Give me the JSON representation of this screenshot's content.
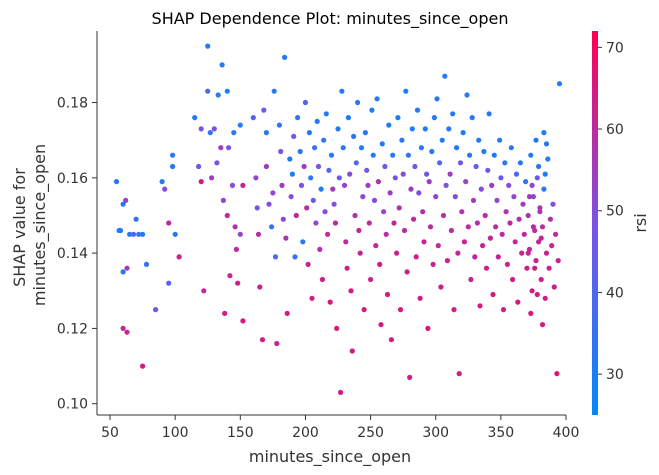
{
  "chart_data": {
    "type": "scatter",
    "title": "SHAP Dependence Plot: minutes_since_open",
    "xlabel": "minutes_since_open",
    "ylabel_line1": "SHAP value for",
    "ylabel_line2": "minutes_since_open",
    "xlim": [
      40,
      400
    ],
    "ylim": [
      0.097,
      0.199
    ],
    "xticks": [
      "50",
      "100",
      "150",
      "200",
      "250",
      "300",
      "350",
      "400"
    ],
    "yticks": [
      "0.10",
      "0.12",
      "0.14",
      "0.16",
      "0.18"
    ],
    "colorbar": {
      "label": "rsi",
      "range": [
        25,
        72
      ],
      "ticks": [
        "30",
        "40",
        "50",
        "60",
        "70"
      ],
      "low_color": "#008afb",
      "mid_color": "#7c52e6",
      "high_color": "#ff0052"
    },
    "points": [
      [
        55,
        0.159,
        32
      ],
      [
        57,
        0.146,
        30
      ],
      [
        58,
        0.146,
        31
      ],
      [
        60,
        0.153,
        33
      ],
      [
        62,
        0.154,
        52
      ],
      [
        60,
        0.135,
        34
      ],
      [
        63,
        0.136,
        55
      ],
      [
        65,
        0.145,
        33
      ],
      [
        68,
        0.145,
        40
      ],
      [
        70,
        0.149,
        34
      ],
      [
        72,
        0.145,
        36
      ],
      [
        75,
        0.145,
        31
      ],
      [
        60,
        0.12,
        60
      ],
      [
        63,
        0.119,
        62
      ],
      [
        75,
        0.11,
        64
      ],
      [
        78,
        0.137,
        35
      ],
      [
        85,
        0.125,
        45
      ],
      [
        90,
        0.159,
        32
      ],
      [
        92,
        0.157,
        50
      ],
      [
        95,
        0.148,
        60
      ],
      [
        95,
        0.132,
        42
      ],
      [
        98,
        0.163,
        30
      ],
      [
        98,
        0.166,
        31
      ],
      [
        100,
        0.145,
        33
      ],
      [
        103,
        0.139,
        63
      ],
      [
        115,
        0.176,
        31
      ],
      [
        118,
        0.163,
        45
      ],
      [
        120,
        0.173,
        48
      ],
      [
        120,
        0.159,
        65
      ],
      [
        122,
        0.13,
        60
      ],
      [
        125,
        0.195,
        31
      ],
      [
        125,
        0.183,
        40
      ],
      [
        127,
        0.172,
        33
      ],
      [
        128,
        0.16,
        55
      ],
      [
        130,
        0.173,
        50
      ],
      [
        132,
        0.164,
        48
      ],
      [
        133,
        0.182,
        32
      ],
      [
        135,
        0.168,
        55
      ],
      [
        136,
        0.19,
        32
      ],
      [
        137,
        0.154,
        52
      ],
      [
        138,
        0.124,
        64
      ],
      [
        140,
        0.183,
        30
      ],
      [
        140,
        0.15,
        60
      ],
      [
        141,
        0.168,
        48
      ],
      [
        142,
        0.134,
        62
      ],
      [
        144,
        0.158,
        50
      ],
      [
        145,
        0.172,
        33
      ],
      [
        146,
        0.147,
        58
      ],
      [
        147,
        0.141,
        60
      ],
      [
        148,
        0.132,
        64
      ],
      [
        150,
        0.174,
        31
      ],
      [
        150,
        0.145,
        52
      ],
      [
        152,
        0.158,
        62
      ],
      [
        152,
        0.122,
        65
      ],
      [
        160,
        0.176,
        40
      ],
      [
        162,
        0.16,
        52
      ],
      [
        163,
        0.152,
        48
      ],
      [
        164,
        0.145,
        60
      ],
      [
        165,
        0.131,
        62
      ],
      [
        167,
        0.117,
        64
      ],
      [
        168,
        0.178,
        45
      ],
      [
        170,
        0.172,
        33
      ],
      [
        170,
        0.163,
        55
      ],
      [
        172,
        0.153,
        50
      ],
      [
        174,
        0.147,
        35
      ],
      [
        175,
        0.156,
        52
      ],
      [
        176,
        0.183,
        31
      ],
      [
        177,
        0.139,
        40
      ],
      [
        178,
        0.116,
        62
      ],
      [
        180,
        0.174,
        34
      ],
      [
        181,
        0.167,
        48
      ],
      [
        182,
        0.158,
        55
      ],
      [
        183,
        0.149,
        52
      ],
      [
        184,
        0.192,
        32
      ],
      [
        185,
        0.144,
        58
      ],
      [
        186,
        0.124,
        64
      ],
      [
        188,
        0.165,
        31
      ],
      [
        189,
        0.155,
        50
      ],
      [
        190,
        0.161,
        30
      ],
      [
        191,
        0.171,
        45
      ],
      [
        192,
        0.139,
        36
      ],
      [
        193,
        0.15,
        62
      ],
      [
        194,
        0.176,
        33
      ],
      [
        196,
        0.167,
        32
      ],
      [
        197,
        0.158,
        48
      ],
      [
        198,
        0.143,
        34
      ],
      [
        199,
        0.163,
        55
      ],
      [
        200,
        0.18,
        40
      ],
      [
        201,
        0.152,
        60
      ],
      [
        202,
        0.137,
        62
      ],
      [
        203,
        0.172,
        31
      ],
      [
        204,
        0.16,
        33
      ],
      [
        205,
        0.128,
        64
      ],
      [
        206,
        0.154,
        45
      ],
      [
        207,
        0.168,
        36
      ],
      [
        208,
        0.148,
        52
      ],
      [
        209,
        0.175,
        32
      ],
      [
        210,
        0.163,
        48
      ],
      [
        211,
        0.141,
        58
      ],
      [
        212,
        0.157,
        30
      ],
      [
        213,
        0.133,
        63
      ],
      [
        214,
        0.17,
        34
      ],
      [
        215,
        0.151,
        50
      ],
      [
        216,
        0.177,
        31
      ],
      [
        217,
        0.145,
        60
      ],
      [
        218,
        0.162,
        40
      ],
      [
        219,
        0.127,
        65
      ],
      [
        220,
        0.166,
        32
      ],
      [
        221,
        0.157,
        55
      ],
      [
        222,
        0.153,
        50
      ],
      [
        223,
        0.148,
        62
      ],
      [
        224,
        0.12,
        64
      ],
      [
        225,
        0.173,
        31
      ],
      [
        226,
        0.16,
        45
      ],
      [
        227,
        0.103,
        64
      ],
      [
        228,
        0.183,
        32
      ],
      [
        229,
        0.168,
        34
      ],
      [
        230,
        0.158,
        52
      ],
      [
        231,
        0.143,
        60
      ],
      [
        232,
        0.136,
        63
      ],
      [
        233,
        0.176,
        30
      ],
      [
        234,
        0.161,
        50
      ],
      [
        235,
        0.13,
        65
      ],
      [
        236,
        0.114,
        64
      ],
      [
        237,
        0.171,
        33
      ],
      [
        238,
        0.15,
        58
      ],
      [
        239,
        0.164,
        42
      ],
      [
        240,
        0.18,
        32
      ],
      [
        241,
        0.146,
        61
      ],
      [
        242,
        0.14,
        62
      ],
      [
        243,
        0.168,
        31
      ],
      [
        244,
        0.155,
        52
      ],
      [
        245,
        0.125,
        64
      ],
      [
        246,
        0.172,
        33
      ],
      [
        247,
        0.162,
        48
      ],
      [
        248,
        0.158,
        55
      ],
      [
        249,
        0.148,
        60
      ],
      [
        250,
        0.133,
        62
      ],
      [
        251,
        0.178,
        31
      ],
      [
        252,
        0.166,
        32
      ],
      [
        253,
        0.154,
        50
      ],
      [
        254,
        0.142,
        61
      ],
      [
        255,
        0.181,
        32
      ],
      [
        256,
        0.159,
        58
      ],
      [
        257,
        0.137,
        63
      ],
      [
        258,
        0.121,
        64
      ],
      [
        259,
        0.169,
        33
      ],
      [
        260,
        0.151,
        52
      ],
      [
        261,
        0.163,
        45
      ],
      [
        262,
        0.145,
        60
      ],
      [
        263,
        0.129,
        65
      ],
      [
        264,
        0.174,
        31
      ],
      [
        265,
        0.156,
        55
      ],
      [
        266,
        0.117,
        64
      ],
      [
        267,
        0.166,
        32
      ],
      [
        268,
        0.148,
        61
      ],
      [
        269,
        0.16,
        47
      ],
      [
        270,
        0.14,
        62
      ],
      [
        271,
        0.176,
        30
      ],
      [
        272,
        0.152,
        58
      ],
      [
        273,
        0.125,
        64
      ],
      [
        274,
        0.17,
        32
      ],
      [
        275,
        0.161,
        52
      ],
      [
        276,
        0.146,
        60
      ],
      [
        277,
        0.183,
        31
      ],
      [
        278,
        0.135,
        63
      ],
      [
        279,
        0.166,
        34
      ],
      [
        280,
        0.107,
        64
      ],
      [
        281,
        0.157,
        55
      ],
      [
        282,
        0.173,
        31
      ],
      [
        283,
        0.149,
        60
      ],
      [
        284,
        0.163,
        46
      ],
      [
        285,
        0.139,
        62
      ],
      [
        286,
        0.178,
        32
      ],
      [
        287,
        0.156,
        50
      ],
      [
        288,
        0.128,
        64
      ],
      [
        289,
        0.168,
        33
      ],
      [
        290,
        0.151,
        58
      ],
      [
        291,
        0.143,
        61
      ],
      [
        292,
        0.173,
        30
      ],
      [
        293,
        0.161,
        45
      ],
      [
        294,
        0.12,
        65
      ],
      [
        295,
        0.159,
        55
      ],
      [
        296,
        0.147,
        60
      ],
      [
        297,
        0.167,
        32
      ],
      [
        298,
        0.137,
        62
      ],
      [
        299,
        0.176,
        31
      ],
      [
        300,
        0.155,
        52
      ],
      [
        301,
        0.181,
        32
      ],
      [
        302,
        0.142,
        61
      ],
      [
        303,
        0.164,
        40
      ],
      [
        304,
        0.131,
        64
      ],
      [
        305,
        0.17,
        31
      ],
      [
        306,
        0.15,
        58
      ],
      [
        307,
        0.187,
        32
      ],
      [
        308,
        0.158,
        48
      ],
      [
        309,
        0.138,
        62
      ],
      [
        310,
        0.173,
        33
      ],
      [
        311,
        0.161,
        55
      ],
      [
        312,
        0.146,
        60
      ],
      [
        313,
        0.177,
        31
      ],
      [
        314,
        0.125,
        64
      ],
      [
        315,
        0.155,
        50
      ],
      [
        316,
        0.168,
        32
      ],
      [
        317,
        0.14,
        61
      ],
      [
        318,
        0.108,
        64
      ],
      [
        319,
        0.164,
        45
      ],
      [
        320,
        0.151,
        58
      ],
      [
        321,
        0.172,
        30
      ],
      [
        322,
        0.143,
        62
      ],
      [
        323,
        0.159,
        52
      ],
      [
        324,
        0.182,
        32
      ],
      [
        325,
        0.147,
        60
      ],
      [
        326,
        0.166,
        33
      ],
      [
        327,
        0.133,
        63
      ],
      [
        328,
        0.176,
        31
      ],
      [
        329,
        0.154,
        55
      ],
      [
        330,
        0.139,
        61
      ],
      [
        331,
        0.163,
        42
      ],
      [
        332,
        0.148,
        58
      ],
      [
        333,
        0.17,
        32
      ],
      [
        334,
        0.126,
        65
      ],
      [
        335,
        0.157,
        50
      ],
      [
        336,
        0.142,
        62
      ],
      [
        337,
        0.167,
        31
      ],
      [
        338,
        0.15,
        60
      ],
      [
        339,
        0.136,
        63
      ],
      [
        340,
        0.162,
        47
      ],
      [
        341,
        0.177,
        32
      ],
      [
        342,
        0.144,
        61
      ],
      [
        343,
        0.158,
        55
      ],
      [
        344,
        0.129,
        64
      ],
      [
        345,
        0.166,
        33
      ],
      [
        346,
        0.147,
        59
      ],
      [
        347,
        0.154,
        52
      ],
      [
        348,
        0.139,
        62
      ],
      [
        349,
        0.17,
        31
      ],
      [
        350,
        0.16,
        45
      ],
      [
        351,
        0.145,
        60
      ],
      [
        352,
        0.125,
        64
      ],
      [
        353,
        0.164,
        33
      ],
      [
        354,
        0.151,
        58
      ],
      [
        355,
        0.137,
        62
      ],
      [
        356,
        0.158,
        50
      ],
      [
        357,
        0.148,
        61
      ],
      [
        358,
        0.168,
        32
      ],
      [
        359,
        0.133,
        63
      ],
      [
        360,
        0.155,
        52
      ],
      [
        361,
        0.143,
        60
      ],
      [
        362,
        0.161,
        40
      ],
      [
        363,
        0.127,
        65
      ],
      [
        364,
        0.149,
        58
      ],
      [
        365,
        0.164,
        31
      ],
      [
        366,
        0.14,
        62
      ],
      [
        367,
        0.153,
        55
      ],
      [
        368,
        0.145,
        60
      ],
      [
        369,
        0.159,
        33
      ],
      [
        370,
        0.136,
        63
      ],
      [
        371,
        0.15,
        57
      ],
      [
        372,
        0.141,
        61
      ],
      [
        373,
        0.166,
        32
      ],
      [
        374,
        0.13,
        64
      ],
      [
        375,
        0.155,
        52
      ],
      [
        376,
        0.146,
        60
      ],
      [
        377,
        0.138,
        62
      ],
      [
        378,
        0.16,
        45
      ],
      [
        379,
        0.143,
        61
      ],
      [
        380,
        0.151,
        55
      ],
      [
        381,
        0.133,
        63
      ],
      [
        382,
        0.147,
        60
      ],
      [
        383,
        0.157,
        33
      ],
      [
        384,
        0.128,
        64
      ],
      [
        385,
        0.14,
        62
      ],
      [
        386,
        0.165,
        31
      ],
      [
        387,
        0.136,
        63
      ],
      [
        388,
        0.149,
        58
      ],
      [
        389,
        0.142,
        61
      ],
      [
        390,
        0.153,
        50
      ],
      [
        391,
        0.131,
        64
      ],
      [
        392,
        0.145,
        60
      ],
      [
        393,
        0.108,
        65
      ],
      [
        394,
        0.138,
        62
      ],
      [
        395,
        0.185,
        31
      ],
      [
        385,
        0.169,
        32
      ],
      [
        384,
        0.161,
        30
      ],
      [
        383,
        0.172,
        31
      ],
      [
        382,
        0.121,
        64
      ],
      [
        381,
        0.144,
        62
      ],
      [
        380,
        0.152,
        57
      ],
      [
        379,
        0.163,
        33
      ],
      [
        378,
        0.129,
        64
      ],
      [
        377,
        0.17,
        31
      ],
      [
        376,
        0.136,
        63
      ],
      [
        375,
        0.147,
        60
      ],
      [
        374,
        0.158,
        52
      ],
      [
        373,
        0.124,
        65
      ],
      [
        372,
        0.155,
        55
      ],
      [
        371,
        0.14,
        62
      ]
    ]
  }
}
